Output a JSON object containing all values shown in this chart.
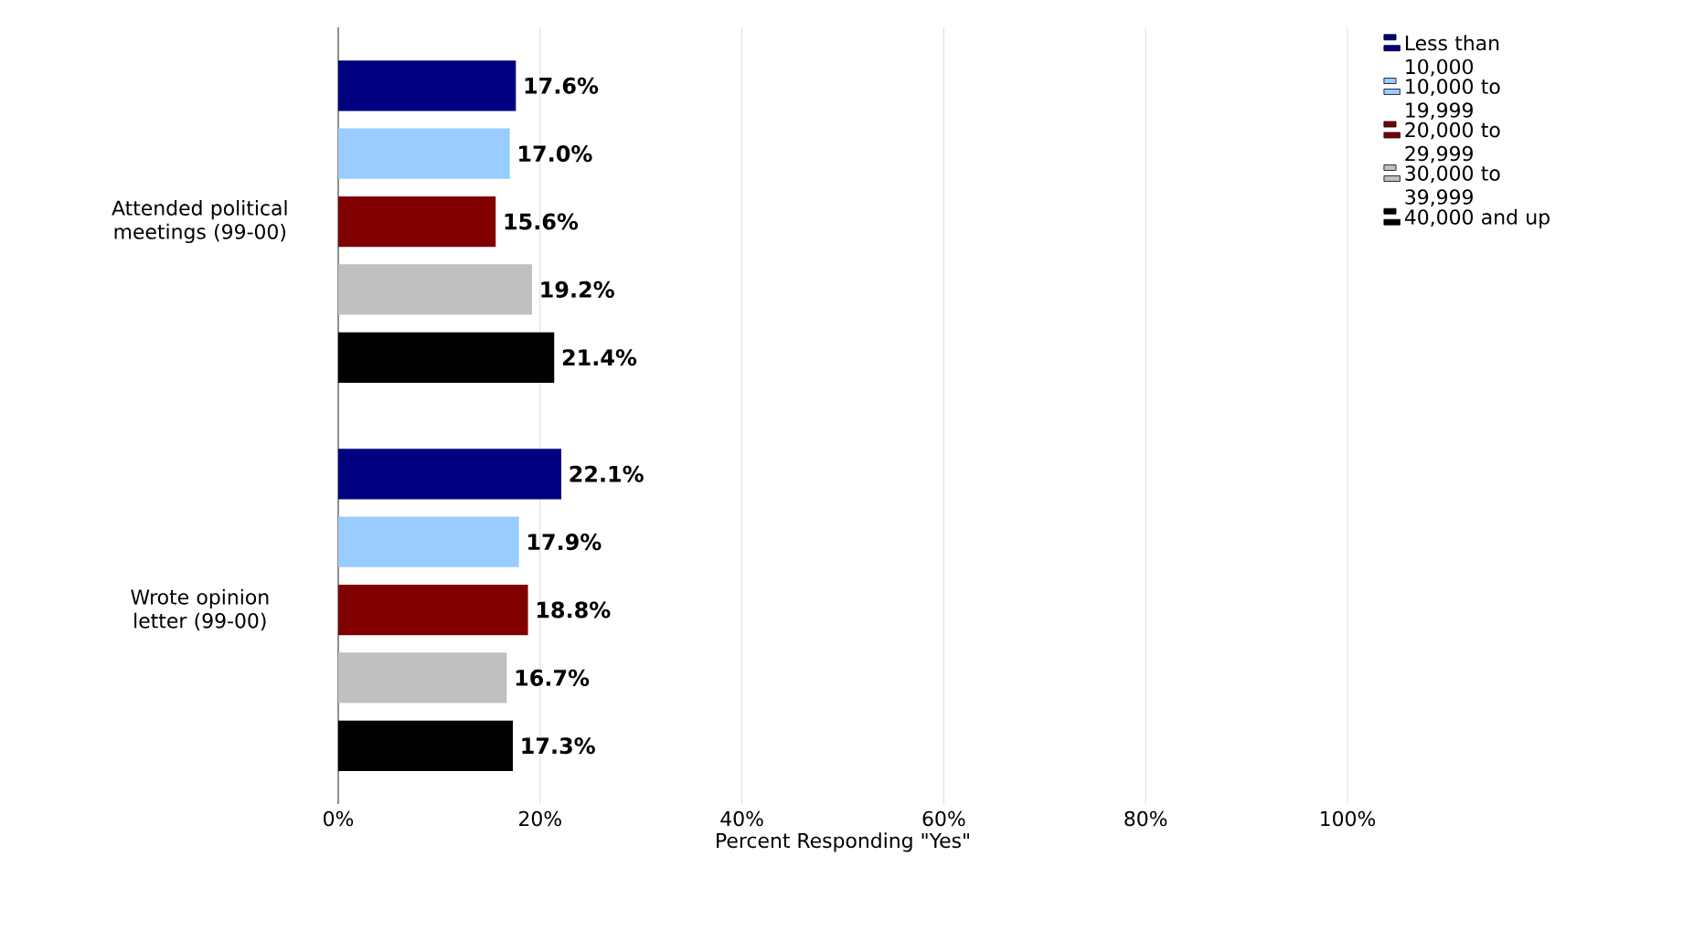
{
  "chart_data": {
    "type": "bar",
    "orientation": "horizontal",
    "xlabel": "Percent Responding \"Yes\"",
    "categories": [
      "Attended political meetings (99-00)",
      "Wrote opinion letter (99-00)"
    ],
    "series": [
      {
        "name": "Less than 10,000",
        "color": "#000080",
        "values": [
          17.6,
          22.1
        ],
        "value_labels": [
          "17.6%",
          "22.1%"
        ]
      },
      {
        "name": "10,000 to 19,999",
        "color": "#99ccff",
        "values": [
          17.0,
          17.9
        ],
        "value_labels": [
          "17.0%",
          "17.9%"
        ]
      },
      {
        "name": "20,000 to 29,999",
        "color": "#800000",
        "values": [
          15.6,
          18.8
        ],
        "value_labels": [
          "15.6%",
          "18.8%"
        ]
      },
      {
        "name": "30,000 to 39,999",
        "color": "#c0c0c0",
        "values": [
          19.2,
          16.7
        ],
        "value_labels": [
          "19.2%",
          "16.7%"
        ]
      },
      {
        "name": "40,000 and up",
        "color": "#000000",
        "values": [
          21.4,
          17.3
        ],
        "value_labels": [
          "21.4%",
          "17.3%"
        ]
      }
    ],
    "xlim": [
      0,
      100
    ],
    "xticks": [
      {
        "value": 0,
        "label": "0%"
      },
      {
        "value": 20,
        "label": "20%"
      },
      {
        "value": 40,
        "label": "40%"
      },
      {
        "value": 60,
        "label": "60%"
      },
      {
        "value": 80,
        "label": "80%"
      },
      {
        "value": 100,
        "label": "100%"
      }
    ],
    "grid": "x",
    "legend": "right"
  }
}
